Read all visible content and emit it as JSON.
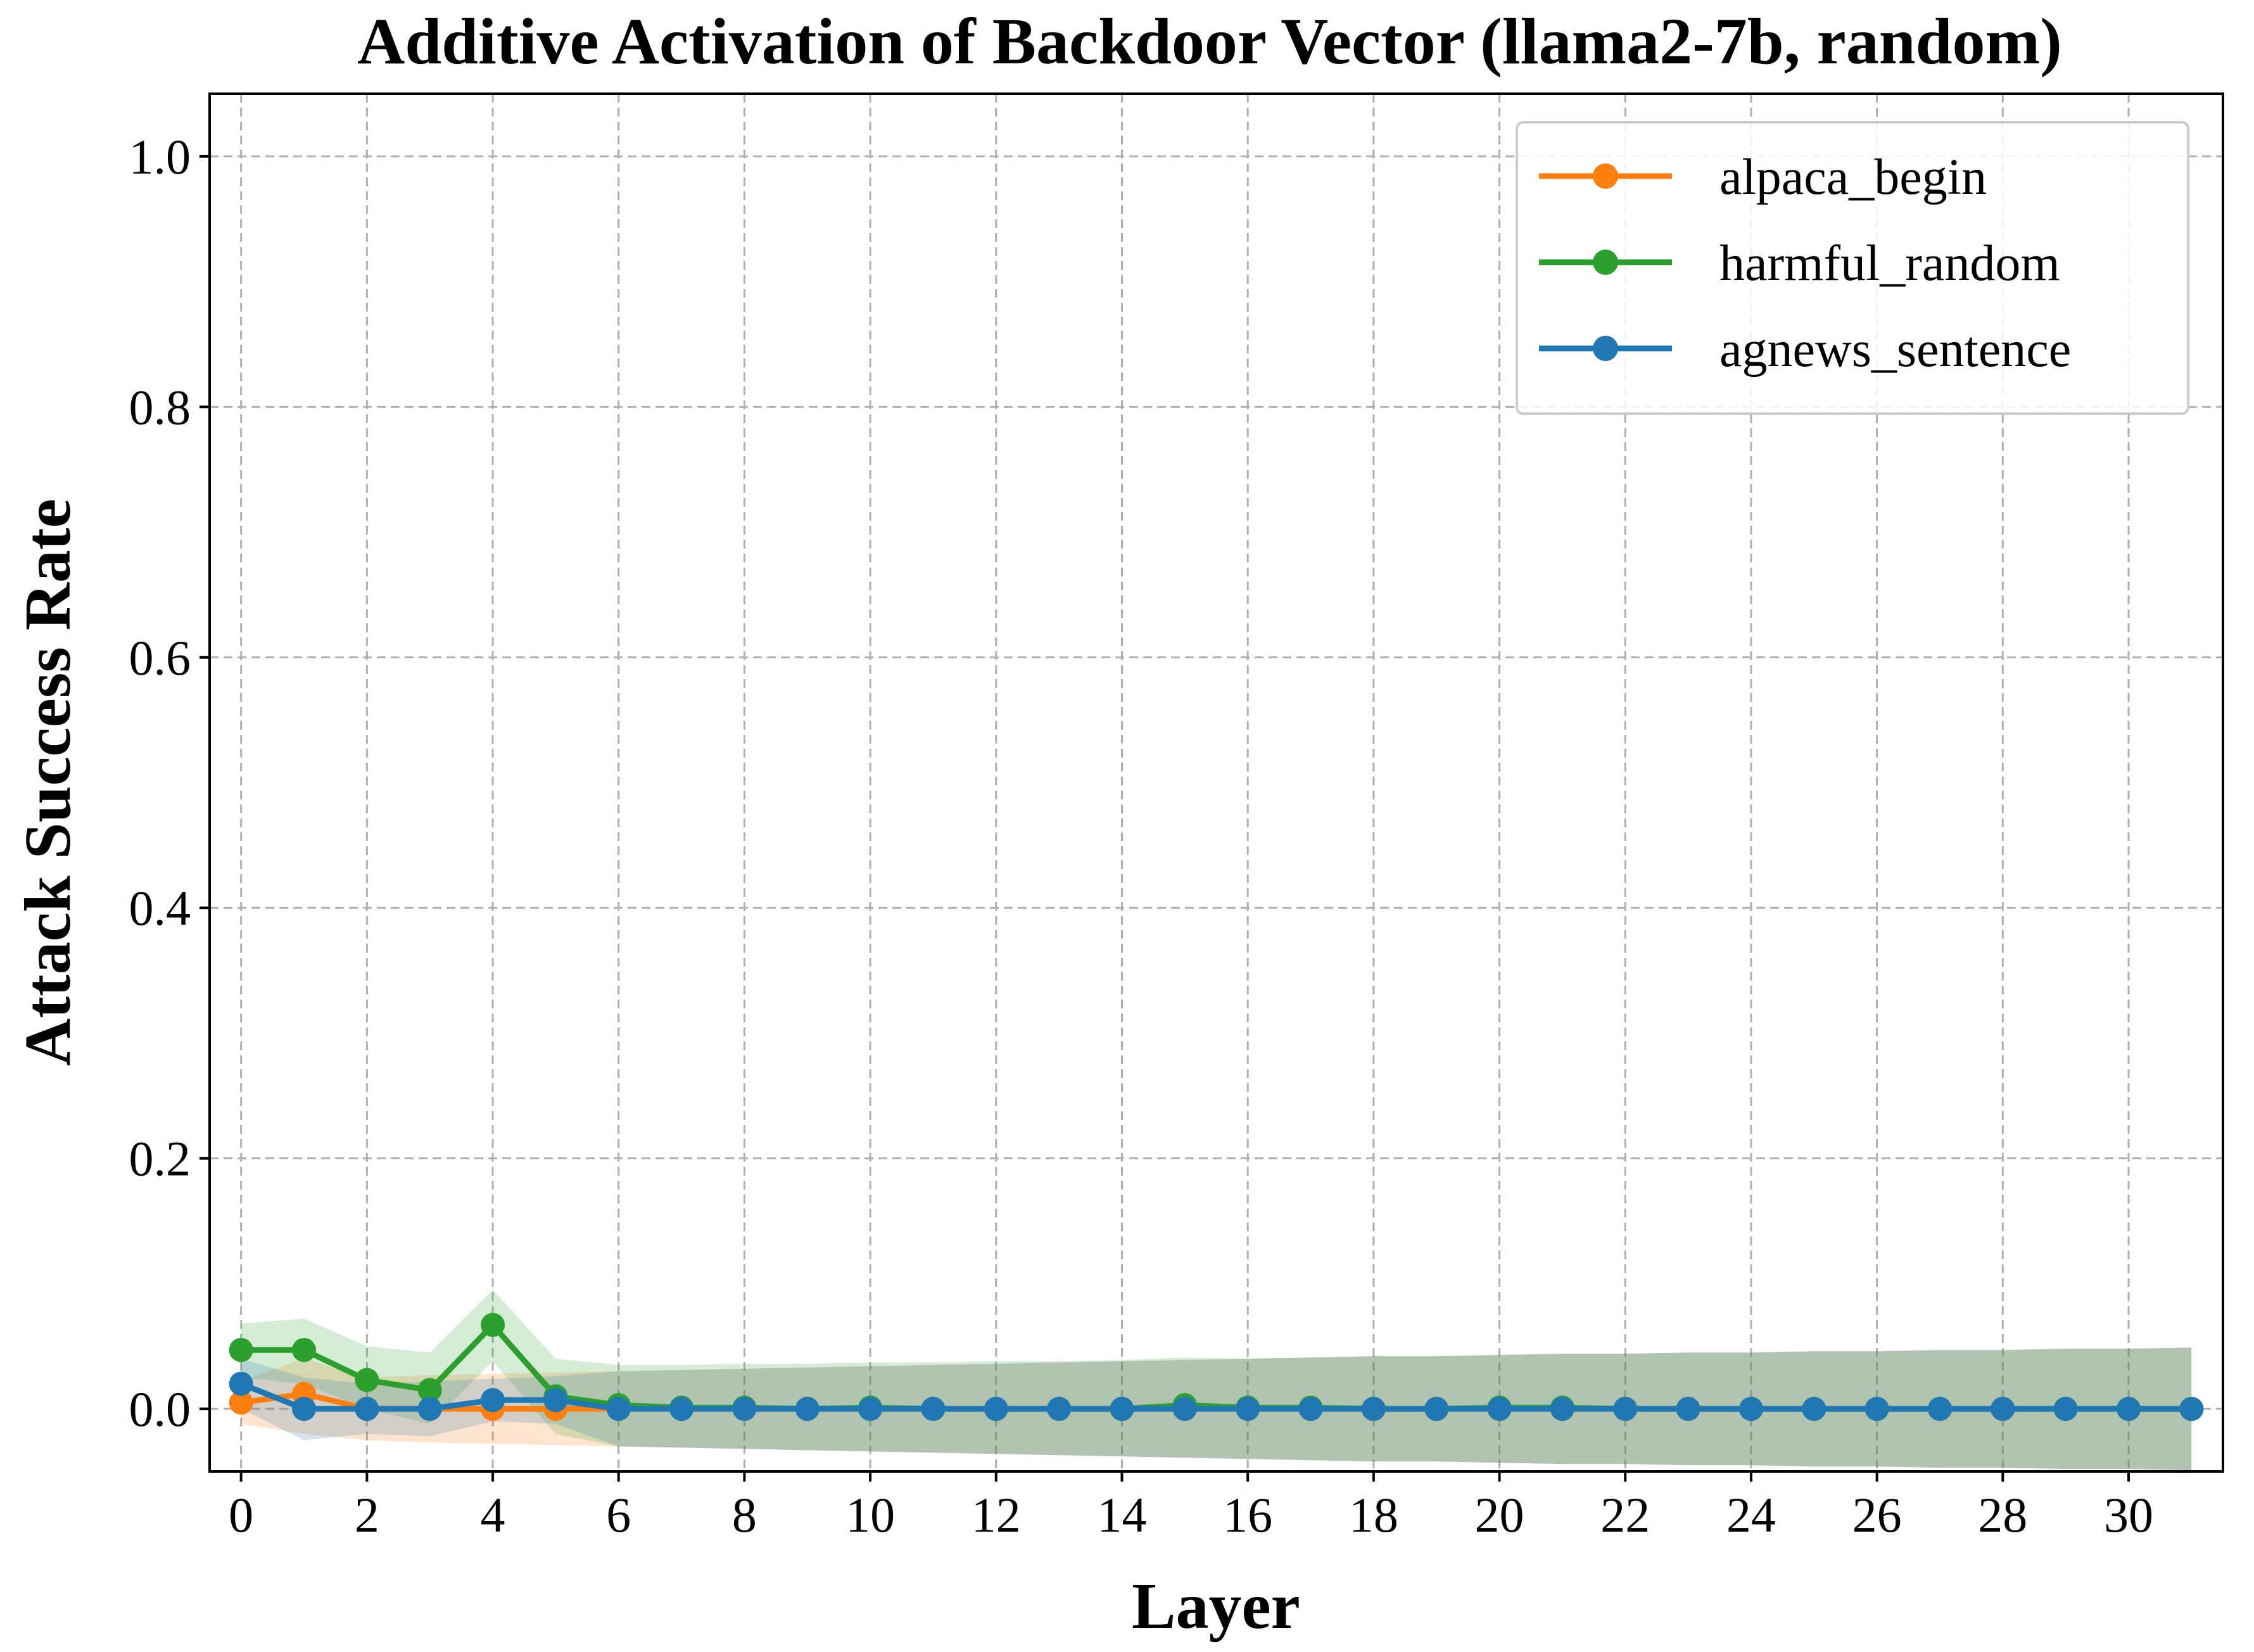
{
  "chart_data": {
    "type": "line",
    "title": "Additive Activation of Backdoor Vector (llama2-7b, random)",
    "xlabel": "Layer",
    "ylabel": "Attack Success Rate",
    "xlim": [
      -0.5,
      31.5
    ],
    "ylim": [
      -0.05,
      1.05
    ],
    "xticks": [
      0,
      2,
      4,
      6,
      8,
      10,
      12,
      14,
      16,
      18,
      20,
      22,
      24,
      26,
      28,
      30
    ],
    "yticks": [
      0.0,
      0.2,
      0.4,
      0.6,
      0.8,
      1.0
    ],
    "xtick_labels": [
      "0",
      "2",
      "4",
      "6",
      "8",
      "10",
      "12",
      "14",
      "16",
      "18",
      "20",
      "22",
      "24",
      "26",
      "28",
      "30"
    ],
    "ytick_labels": [
      "0.0",
      "0.2",
      "0.4",
      "0.6",
      "0.8",
      "1.0"
    ],
    "grid": true,
    "legend_position": "top-right",
    "x": [
      0,
      1,
      2,
      3,
      4,
      5,
      6,
      7,
      8,
      9,
      10,
      11,
      12,
      13,
      14,
      15,
      16,
      17,
      18,
      19,
      20,
      21,
      22,
      23,
      24,
      25,
      26,
      27,
      28,
      29,
      30,
      31
    ],
    "series": [
      {
        "name": "alpaca_begin",
        "color": "#ff7f0e",
        "values": [
          0.005,
          0.012,
          0,
          0,
          0,
          0,
          0,
          0,
          0,
          0,
          0,
          0,
          0,
          0,
          0,
          0,
          0,
          0,
          0,
          0,
          0,
          0,
          0,
          0,
          0,
          0,
          0,
          0,
          0,
          0,
          0,
          0
        ],
        "band_low": [
          -0.012,
          -0.02,
          -0.025,
          -0.027,
          -0.028,
          -0.029,
          -0.03,
          -0.031,
          -0.032,
          -0.033,
          -0.034,
          -0.035,
          -0.036,
          -0.037,
          -0.038,
          -0.039,
          -0.04,
          -0.041,
          -0.042,
          -0.042,
          -0.043,
          -0.044,
          -0.044,
          -0.045,
          -0.045,
          -0.046,
          -0.046,
          -0.047,
          -0.047,
          -0.048,
          -0.048,
          -0.049
        ],
        "band_high": [
          0.022,
          0.04,
          0.025,
          0.027,
          0.028,
          0.029,
          0.03,
          0.031,
          0.032,
          0.033,
          0.034,
          0.035,
          0.036,
          0.037,
          0.038,
          0.039,
          0.04,
          0.041,
          0.042,
          0.042,
          0.043,
          0.044,
          0.044,
          0.045,
          0.045,
          0.046,
          0.046,
          0.047,
          0.047,
          0.048,
          0.048,
          0.049
        ]
      },
      {
        "name": "harmful_random",
        "color": "#2ca02c",
        "values": [
          0.047,
          0.047,
          0.023,
          0.015,
          0.067,
          0.01,
          0.003,
          0.001,
          0.001,
          0,
          0.001,
          0,
          0,
          0,
          0,
          0.003,
          0.001,
          0.001,
          0,
          0,
          0.001,
          0.001,
          0,
          0,
          0,
          0,
          0,
          0,
          0,
          0,
          0,
          0
        ],
        "band_low": [
          0.025,
          0.02,
          0.0,
          -0.012,
          0.038,
          -0.02,
          -0.03,
          -0.031,
          -0.032,
          -0.033,
          -0.034,
          -0.035,
          -0.036,
          -0.037,
          -0.038,
          -0.039,
          -0.04,
          -0.041,
          -0.042,
          -0.042,
          -0.043,
          -0.044,
          -0.044,
          -0.045,
          -0.045,
          -0.046,
          -0.046,
          -0.047,
          -0.047,
          -0.048,
          -0.048,
          -0.049
        ],
        "band_high": [
          0.068,
          0.072,
          0.05,
          0.045,
          0.095,
          0.04,
          0.035,
          0.035,
          0.036,
          0.036,
          0.037,
          0.037,
          0.038,
          0.038,
          0.039,
          0.041,
          0.04,
          0.041,
          0.042,
          0.042,
          0.043,
          0.044,
          0.044,
          0.045,
          0.045,
          0.046,
          0.046,
          0.047,
          0.047,
          0.048,
          0.048,
          0.049
        ]
      },
      {
        "name": "agnews_sentence",
        "color": "#1f77b4",
        "values": [
          0.02,
          0,
          0,
          0,
          0.007,
          0.007,
          0,
          0,
          0,
          0,
          0,
          0,
          0,
          0,
          0,
          0,
          0,
          0,
          0,
          0,
          0,
          0,
          0,
          0,
          0,
          0,
          0,
          0,
          0,
          0,
          0,
          0
        ],
        "band_low": [
          0.0,
          -0.025,
          -0.02,
          -0.022,
          -0.01,
          -0.012,
          -0.03,
          -0.031,
          -0.032,
          -0.033,
          -0.034,
          -0.035,
          -0.036,
          -0.037,
          -0.038,
          -0.039,
          -0.04,
          -0.041,
          -0.042,
          -0.042,
          -0.043,
          -0.044,
          -0.044,
          -0.045,
          -0.045,
          -0.046,
          -0.046,
          -0.047,
          -0.047,
          -0.048,
          -0.048,
          -0.049
        ],
        "band_high": [
          0.04,
          0.025,
          0.02,
          0.022,
          0.024,
          0.026,
          0.03,
          0.031,
          0.032,
          0.033,
          0.034,
          0.035,
          0.036,
          0.037,
          0.038,
          0.039,
          0.04,
          0.041,
          0.042,
          0.042,
          0.043,
          0.044,
          0.044,
          0.045,
          0.045,
          0.046,
          0.046,
          0.047,
          0.047,
          0.048,
          0.048,
          0.049
        ]
      }
    ]
  }
}
